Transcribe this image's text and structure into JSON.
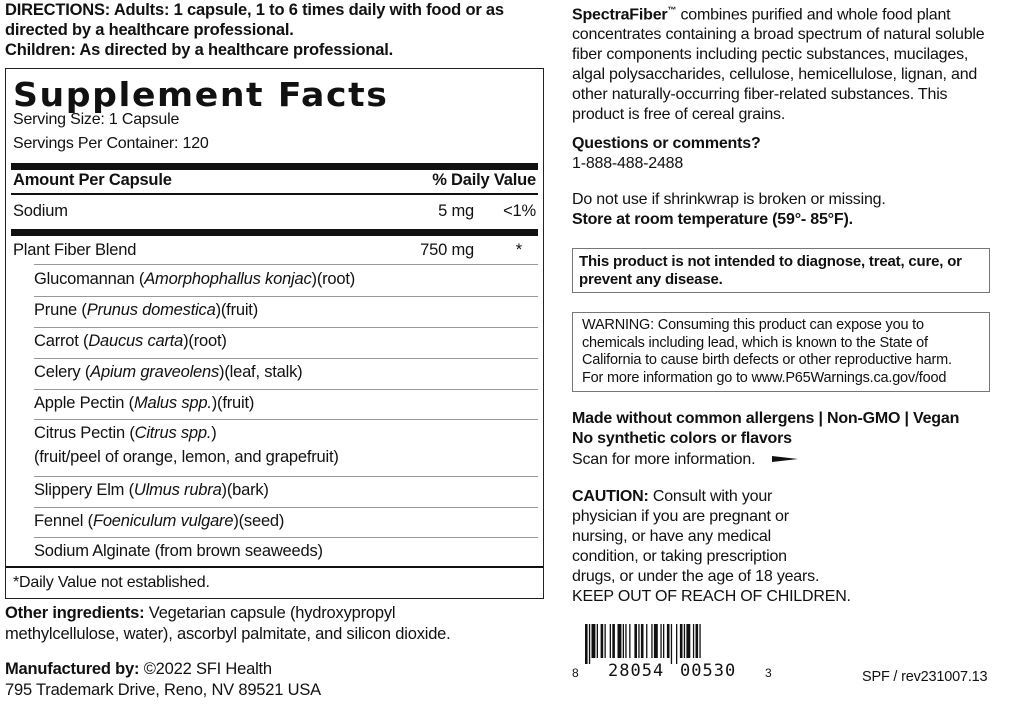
{
  "directions": {
    "line1": "DIRECTIONS: Adults: 1 capsule, 1 to 6 times daily with food or as",
    "line2": "directed by a healthcare professional.",
    "line3": "Children: As directed by a healthcare professional."
  },
  "facts": {
    "title": "Supplement Facts",
    "serving_size": "Serving Size: 1 Capsule",
    "servings_per_container": "Servings Per Container: 120",
    "amount_header": "Amount Per Capsule",
    "dv_header": "% Daily Value",
    "sodium": {
      "name": "Sodium",
      "amount": "5 mg",
      "dv": "<1%"
    },
    "blend": {
      "name": "Plant Fiber Blend",
      "amount": "750 mg",
      "dv": "*"
    },
    "ingredients": [
      {
        "name": "Glucomannan (",
        "latin": "Amorphophallus konjac",
        "part": ")(root)"
      },
      {
        "name": "Prune (",
        "latin": "Prunus domestica",
        "part": ")(fruit)"
      },
      {
        "name": "Carrot (",
        "latin": "Daucus carta",
        "part": ")(root)"
      },
      {
        "name": "Celery (",
        "latin": "Apium graveolens",
        "part": ")(leaf, stalk)"
      },
      {
        "name": "Apple Pectin (",
        "latin": "Malus spp.",
        "part": ")(fruit)"
      },
      {
        "name": "Citrus Pectin (",
        "latin": "Citrus spp.",
        "part": ")",
        "line2": "(fruit/peel of orange, lemon, and grapefruit)"
      },
      {
        "name": "Slippery Elm (",
        "latin": "Ulmus rubra",
        "part": ")(bark)"
      },
      {
        "name": "Fennel (",
        "latin": "Foeniculum vulgare",
        "part": ")(seed)"
      },
      {
        "name": "Sodium Alginate (from brown seaweeds)",
        "latin": "",
        "part": ""
      }
    ],
    "footnote": "*Daily Value not established."
  },
  "other_ingredients": {
    "label": "Other ingredients:",
    "text1": " Vegetarian capsule (hydroxypropyl",
    "text2": "methylcellulose, water), ascorbyl palmitate, and silicon dioxide."
  },
  "manufacturer": {
    "label": "Manufactured by:",
    "text": " ©2022 SFI Health",
    "address": "795 Trademark Drive, Reno, NV 89521 USA"
  },
  "right": {
    "brand": "SpectraFiber",
    "tm": "™",
    "desc_lines": [
      " combines purified and whole food plant",
      "concentrates containing a broad spectrum of natural soluble",
      "fiber components including pectic substances, mucilages,",
      "algal polysaccharides, cellulose, hemicellulose, lignan, and",
      "other naturally-occurring fiber-related substances. This",
      "product is free of cereal grains."
    ],
    "questions": "Questions or comments?",
    "phone": "1-888-488-2488",
    "shrinkwrap": "Do not use if shrinkwrap is broken or missing.",
    "storage": "Store at room temperature (59°- 85°F).",
    "disclaimer_lines": [
      "This product is not intended to diagnose, treat, cure, or",
      "prevent any disease."
    ],
    "warning_lines": [
      "WARNING: Consuming this product can expose you to",
      "chemicals including lead, which is known to the State of",
      "California to cause birth defects or other reproductive harm.",
      "For more information go to www.P65Warnings.ca.gov/food"
    ],
    "allergens": "Made without common allergens | Non-GMO | Vegan",
    "no_synthetic": "No synthetic colors or flavors",
    "scan": "Scan for more information.",
    "caution_label": "CAUTION:",
    "caution_lines": [
      " Consult with your",
      "physician if you are pregnant or",
      "nursing, or have any medical",
      "condition, or taking prescription",
      "drugs, or under the age of 18 years.",
      "KEEP OUT OF REACH OF CHILDREN."
    ],
    "barcode": {
      "first": "8",
      "left": "28054",
      "right": "00530",
      "last": "3"
    },
    "revision": "SPF / rev231007.13"
  }
}
